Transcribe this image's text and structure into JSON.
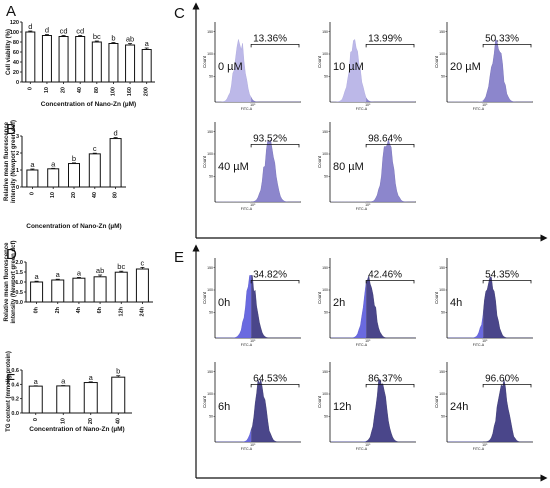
{
  "panel_letters": {
    "A": "A",
    "B": "B",
    "C": "C",
    "D": "D",
    "E": "E",
    "F": "F"
  },
  "chart_data": [
    {
      "id": "A",
      "type": "bar",
      "ylabel": "Cell viability (%)",
      "xlabel": "Concentration of Nano-Zn (µM)",
      "categories": [
        "0",
        "10",
        "20",
        "40",
        "80",
        "100",
        "160",
        "200"
      ],
      "values": [
        100,
        93,
        91,
        91,
        80,
        77,
        74,
        65
      ],
      "errors": [
        2,
        2,
        2,
        2,
        2,
        2,
        3,
        3
      ],
      "letters": [
        "d",
        "d",
        "cd",
        "cd",
        "bc",
        "b",
        "ab",
        "a"
      ],
      "ylim": [
        0,
        120
      ],
      "yticks": [
        "0",
        "20",
        "40",
        "60",
        "80",
        "100",
        "120"
      ]
    },
    {
      "id": "B",
      "type": "bar",
      "ylabel": "Relative mean fluorescence intensity (Newport green dcf)",
      "xlabel": "Concentration of Nano-Zn (µM)",
      "categories": [
        "0",
        "10",
        "20",
        "40",
        "80"
      ],
      "values": [
        1.0,
        1.07,
        1.38,
        1.95,
        2.85
      ],
      "errors": [
        0.06,
        0.03,
        0.04,
        0.04,
        0.06
      ],
      "letters": [
        "a",
        "a",
        "b",
        "c",
        "d"
      ],
      "ylim": [
        0,
        3
      ],
      "yticks": [
        "0",
        "1",
        "2",
        "3"
      ]
    },
    {
      "id": "D",
      "type": "bar",
      "ylabel": "Relative mean fluorescence intensity (Newport green dcf)",
      "xlabel": "",
      "categories": [
        "0h",
        "2h",
        "4h",
        "6h",
        "12h",
        "24h"
      ],
      "values": [
        1.0,
        1.1,
        1.19,
        1.26,
        1.49,
        1.65
      ],
      "errors": [
        0.04,
        0.04,
        0.04,
        0.09,
        0.05,
        0.08
      ],
      "letters": [
        "a",
        "a",
        "a",
        "ab",
        "bc",
        "c"
      ],
      "ylim": [
        0,
        2
      ],
      "yticks": [
        "0.0",
        "0.5",
        "1.0",
        "1.5",
        "2.0"
      ]
    },
    {
      "id": "F",
      "type": "bar",
      "ylabel": "TG content (mmol/g protein)",
      "xlabel": "Concentration of Nano-Zn (µM)",
      "categories": [
        "0",
        "10",
        "20",
        "40"
      ],
      "values": [
        0.375,
        0.378,
        0.425,
        0.5
      ],
      "errors": [
        0.005,
        0.005,
        0.01,
        0.02
      ],
      "letters": [
        "a",
        "a",
        "a",
        "b"
      ],
      "ylim": [
        0,
        0.6
      ],
      "yticks": [
        "0.0",
        "0.2",
        "0.4",
        "0.6"
      ]
    }
  ],
  "flow_panels": {
    "axis_label_x": "FITC-A",
    "axis_label_y": "Count",
    "tick_10e5": "10⁵",
    "y_ticks_show": [
      "150",
      "100",
      "50"
    ],
    "C": [
      {
        "label": "0 µM",
        "pct": "13.36%",
        "shift": 0.0
      },
      {
        "label": "10 µM",
        "pct": "13.99%",
        "shift": 0.0
      },
      {
        "label": "20 µM",
        "pct": "50.33%",
        "shift": 0.55
      },
      {
        "label": "40 µM",
        "pct": "93.52%",
        "shift": 0.65
      },
      {
        "label": "80 µM",
        "pct": "98.64%",
        "shift": 0.72
      }
    ],
    "E": [
      {
        "label": "0h",
        "pct": "34.82%",
        "shift": 0.25
      },
      {
        "label": "2h",
        "pct": "42.46%",
        "shift": 0.32
      },
      {
        "label": "4h",
        "pct": "54.35%",
        "shift": 0.4
      },
      {
        "label": "6h",
        "pct": "64.53%",
        "shift": 0.45
      },
      {
        "label": "12h",
        "pct": "86.37%",
        "shift": 0.58
      },
      {
        "label": "24h",
        "pct": "96.60%",
        "shift": 0.68
      }
    ]
  },
  "colors": {
    "hist_light": "#bcb8e8",
    "hist_mid": "#8c86cc",
    "hist_dark": "#4a468a",
    "hist_blue": "#6a6ae0",
    "bar_fill": "#ffffff",
    "axis": "#111111"
  }
}
